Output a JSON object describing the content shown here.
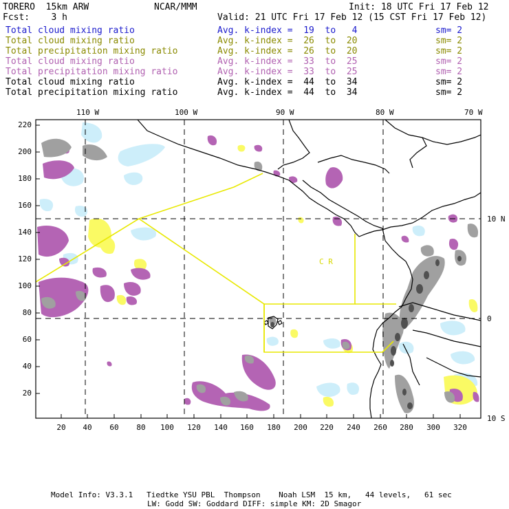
{
  "header": {
    "model": "TORERO  15km ARW",
    "org": "NCAR/MMM",
    "init": "Init: 18 UTC Fri 17 Feb 12",
    "fcst": "Fcst:    3 h",
    "valid": "Valid: 21 UTC Fri 17 Feb 12 (15 CST Fri 17 Feb 12)"
  },
  "legend": [
    {
      "name": "Total cloud mixing ratio",
      "kindex": "Avg. k-index =  19  to   4",
      "sm": "sm= 2",
      "color": "#1a1acc"
    },
    {
      "name": "Total cloud mixing ratio",
      "kindex": "Avg. k-index =  26  to  20",
      "sm": "sm= 2",
      "color": "#8a8a00"
    },
    {
      "name": "Total precipitation mixing ratio",
      "kindex": "Avg. k-index =  26  to  20",
      "sm": "sm= 2",
      "color": "#8a8a00"
    },
    {
      "name": "Total cloud mixing ratio",
      "kindex": "Avg. k-index =  33  to  25",
      "sm": "sm= 2",
      "color": "#b060b0"
    },
    {
      "name": "Total precipitation mixing ratio",
      "kindex": "Avg. k-index =  33  to  25",
      "sm": "sm= 2",
      "color": "#b060b0"
    },
    {
      "name": "Total cloud mixing ratio",
      "kindex": "Avg. k-index =  44  to  34",
      "sm": "sm= 2",
      "color": "#000000"
    },
    {
      "name": "Total precipitation mixing ratio",
      "kindex": "Avg. k-index =  44  to  34",
      "sm": "sm= 2",
      "color": "#000000"
    }
  ],
  "axes": {
    "top_lon": [
      "110 W",
      "100 W",
      "90 W",
      "80 W",
      "70 W"
    ],
    "right_lat": [
      "10 N",
      "0",
      "10 S"
    ],
    "left_y": [
      "220",
      "200",
      "180",
      "160",
      "140",
      "120",
      "100",
      "80",
      "60",
      "40",
      "20"
    ],
    "bottom_x": [
      "20",
      "40",
      "60",
      "80",
      "100",
      "120",
      "140",
      "160",
      "180",
      "200",
      "220",
      "240",
      "260",
      "280",
      "300",
      "320"
    ]
  },
  "map_labels": {
    "region": "C  R"
  },
  "footer": {
    "line1": "Model Info: V3.3.1   Tiedtke YSU PBL  Thompson    Noah LSM  15 km,   44 levels,   61 sec",
    "line2": "LW: Godd SW: Goddard DIFF: simple KM: 2D Smagor"
  },
  "colors": {
    "light_blue": "#cdeefa",
    "yellow": "#fafa64",
    "purple": "#b464b4",
    "gray": "#a0a0a0",
    "dark_gray": "#505050",
    "domain_box": "#e8e800"
  }
}
